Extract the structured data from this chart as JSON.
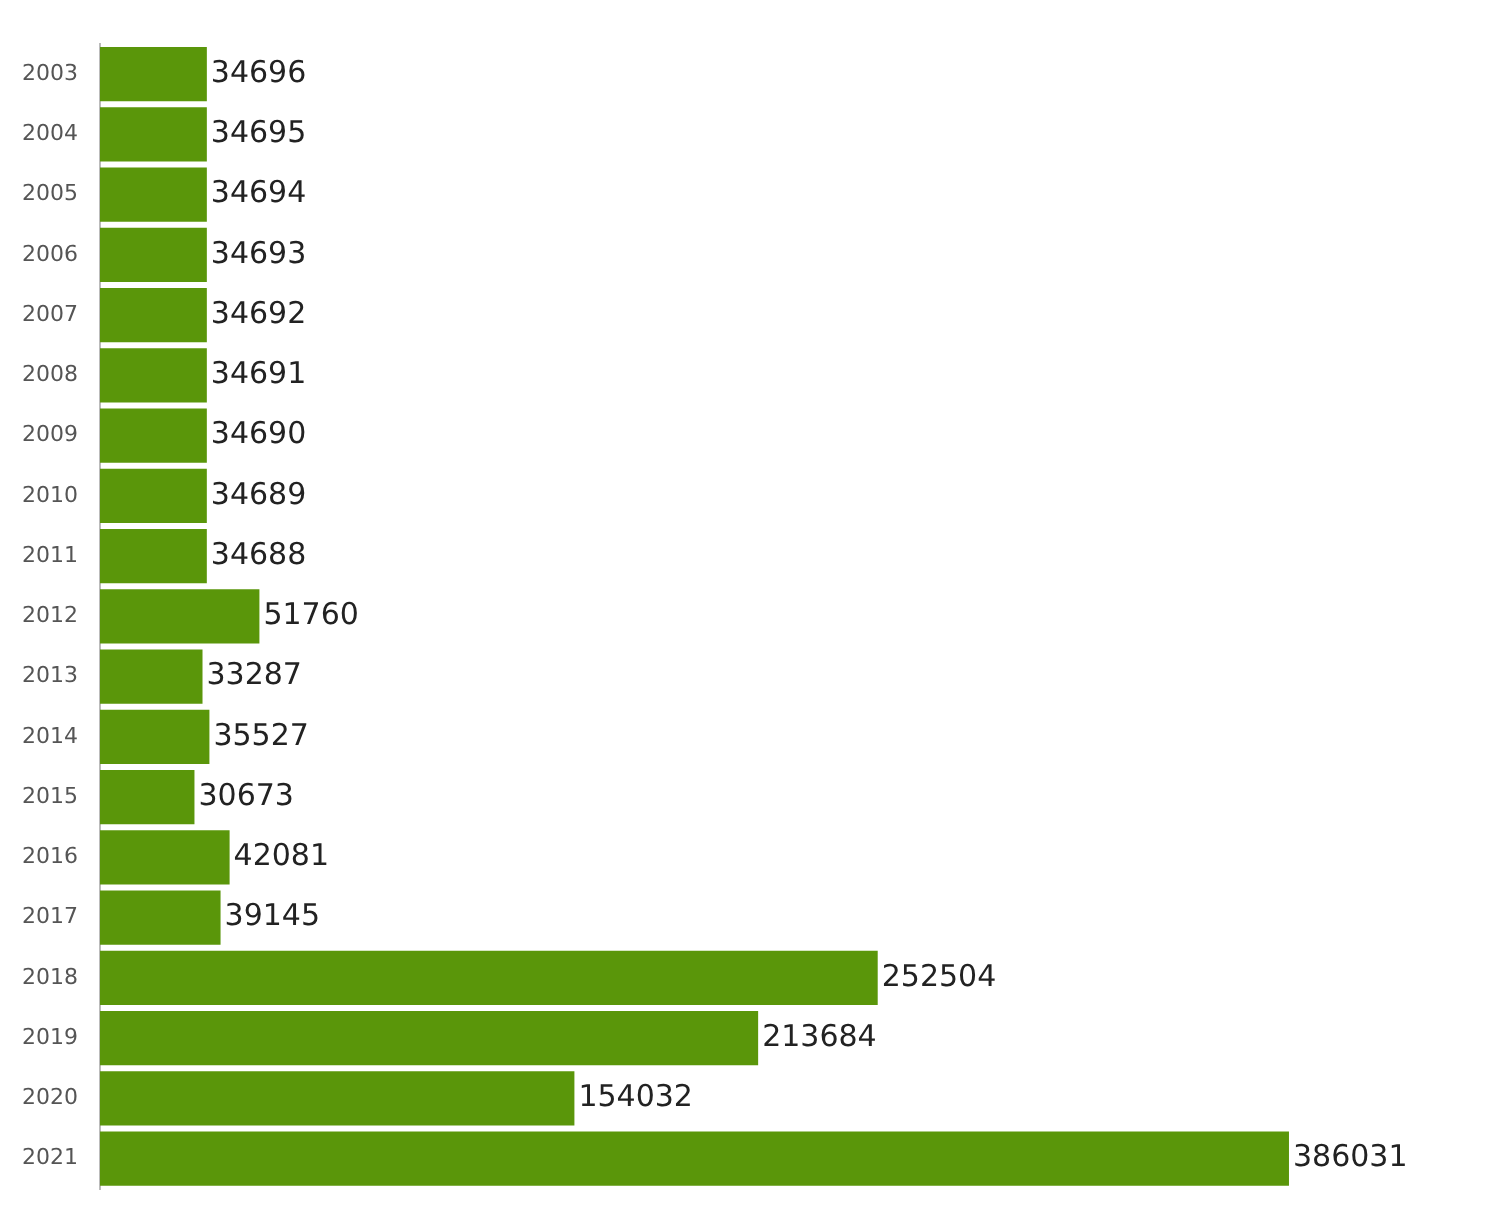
{
  "chart_data": {
    "type": "bar",
    "orientation": "horizontal",
    "categories": [
      "2003",
      "2004",
      "2005",
      "2006",
      "2007",
      "2008",
      "2009",
      "2010",
      "2011",
      "2012",
      "2013",
      "2014",
      "2015",
      "2016",
      "2017",
      "2018",
      "2019",
      "2020",
      "2021"
    ],
    "values": [
      34696,
      34695,
      34694,
      34693,
      34692,
      34691,
      34690,
      34689,
      34688,
      51760,
      33287,
      35527,
      30673,
      42081,
      39145,
      252504,
      213684,
      154032,
      386031
    ],
    "color": "#5a960a",
    "data_labels": true,
    "tick_labels": "y",
    "legend": false
  }
}
